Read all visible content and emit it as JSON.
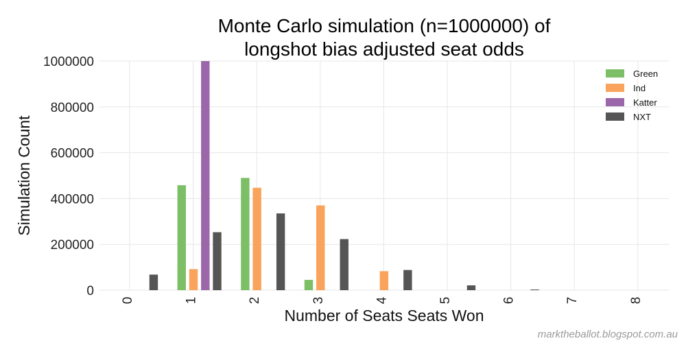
{
  "chart_data": {
    "type": "bar",
    "title_lines": [
      "Monte Carlo simulation (n=1000000) of",
      "longshot bias adjusted seat odds"
    ],
    "xlabel": "Number of Seats Seats Won",
    "ylabel": "Simulation Count",
    "categories": [
      "0",
      "1",
      "2",
      "3",
      "4",
      "5",
      "6",
      "7",
      "8"
    ],
    "yticks": [
      "0",
      "200000",
      "400000",
      "600000",
      "800000",
      "1000000"
    ],
    "ylim": [
      0,
      1000000
    ],
    "grid": true,
    "legend_position": "top-right",
    "series": [
      {
        "name": "Green",
        "color": "#7cbf66",
        "values": [
          0,
          458000,
          490000,
          45000,
          0,
          0,
          0,
          0,
          0
        ]
      },
      {
        "name": "Ind",
        "color": "#f9a35c",
        "values": [
          0,
          92000,
          447000,
          370000,
          83000,
          0,
          0,
          0,
          0
        ]
      },
      {
        "name": "Katter",
        "color": "#9b67aa",
        "values": [
          0,
          1000000,
          0,
          0,
          0,
          0,
          0,
          0,
          0
        ]
      },
      {
        "name": "NXT",
        "color": "#555555",
        "values": [
          68000,
          253000,
          335000,
          223000,
          88000,
          21000,
          3000,
          0,
          0
        ]
      }
    ]
  },
  "watermark": "marktheballot.blogspot.com.au"
}
